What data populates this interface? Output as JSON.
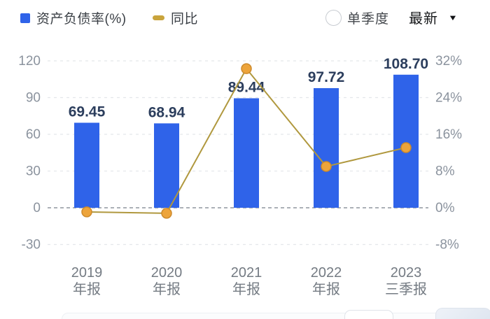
{
  "legend": {
    "items": [
      {
        "label": "资产负债率(%)",
        "swatch": "blue-square",
        "color": "#2f63e9"
      },
      {
        "label": "同比",
        "swatch": "gold-dash",
        "color": "#c9a43c"
      }
    ]
  },
  "controls": {
    "radio_label": "单季度",
    "radio_checked": false,
    "dropdown_label": "最新",
    "dropdown_icon": "caret-down"
  },
  "chart_data": {
    "type": "bar",
    "categories": [
      {
        "line1": "2019",
        "line2": "年报"
      },
      {
        "line1": "2020",
        "line2": "年报"
      },
      {
        "line1": "2021",
        "line2": "年报"
      },
      {
        "line1": "2022",
        "line2": "年报"
      },
      {
        "line1": "2023",
        "line2": "三季报"
      }
    ],
    "series": [
      {
        "name": "资产负债率(%)",
        "type": "bar",
        "axis": "left",
        "values": [
          69.45,
          68.94,
          89.44,
          97.72,
          108.7
        ],
        "labels": [
          "69.45",
          "68.94",
          "89.44",
          "97.72",
          "108.70"
        ]
      },
      {
        "name": "同比",
        "type": "line",
        "axis": "right",
        "values": [
          -0.9,
          -1.2,
          30.3,
          9.0,
          13.1
        ]
      }
    ],
    "left_axis": {
      "ticks": [
        120,
        90,
        60,
        30,
        0,
        -30
      ],
      "range": [
        -30,
        120
      ]
    },
    "right_axis": {
      "tick_labels": [
        "32%",
        "24%",
        "16%",
        "8%",
        "0%",
        "-8%"
      ],
      "tick_values": [
        32,
        24,
        16,
        8,
        0,
        -8
      ],
      "range": [
        -8,
        32
      ]
    },
    "grid": true,
    "legend_position": "top-left",
    "colors": {
      "bar": "#2f63e9",
      "line": "#b0983e",
      "point_fill": "#eda43b",
      "point_stroke": "#cd8a2c",
      "value_label": "#2c3e5d",
      "axis_text": "#8b939e",
      "xaxis_text": "#747b83",
      "gridline": "#e4e7eb",
      "zero_line": "#8f959d"
    }
  }
}
